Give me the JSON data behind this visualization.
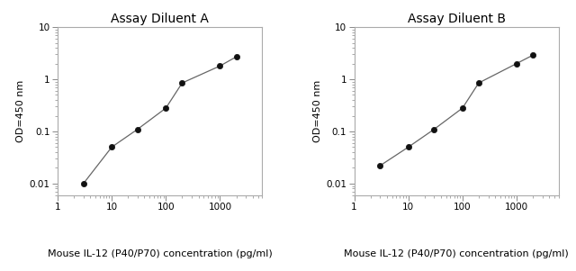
{
  "title_A": "Assay Diluent A",
  "title_B": "Assay Diluent B",
  "xlabel": "Mouse IL-12 (P40/P70) concentration (pg/ml)",
  "ylabel": "OD=450 nm",
  "x_A": [
    3,
    10,
    30,
    100,
    200,
    1000,
    2000
  ],
  "y_A": [
    0.01,
    0.05,
    0.11,
    0.28,
    0.85,
    1.8,
    2.7
  ],
  "x_B": [
    3,
    10,
    30,
    100,
    200,
    1000,
    2000
  ],
  "y_B": [
    0.022,
    0.05,
    0.11,
    0.28,
    0.85,
    2.0,
    2.9
  ],
  "xlim": [
    1.5,
    6000
  ],
  "ylim": [
    0.006,
    10
  ],
  "background_color": "#ffffff",
  "line_color": "#666666",
  "marker_color": "#111111",
  "title_fontsize": 10,
  "label_fontsize": 8,
  "tick_fontsize": 7.5,
  "spine_color": "#aaaaaa",
  "marker_size": 4.5
}
